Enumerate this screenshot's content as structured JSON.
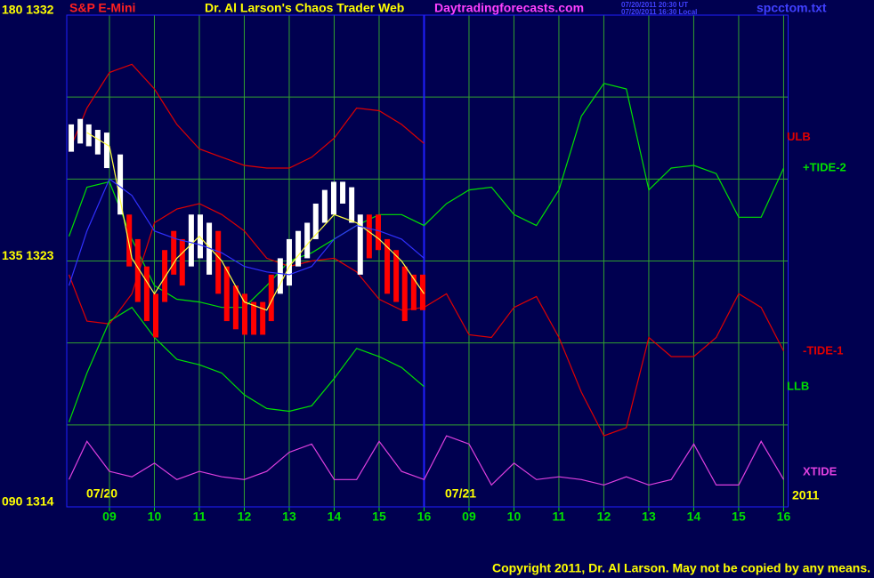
{
  "header": {
    "symbol": "S&P E-Mini",
    "title": "Dr. Al Larson's Chaos Trader Web",
    "site": "Daytradingforecasts.com",
    "timestamp_ut": "07/20/2011 20:30 UT",
    "timestamp_local": "07/20/2011 16:30 Local",
    "file": "spcctom.txt"
  },
  "chart_data": {
    "type": "line",
    "x": [
      0.1,
      0.5,
      1,
      1.5,
      2,
      2.5,
      3,
      3.5,
      4,
      4.5,
      5,
      5.5,
      6,
      6.5,
      7,
      7.5,
      8,
      8.5,
      9,
      9.5,
      10,
      10.5,
      11,
      11.5,
      12,
      12.5,
      13,
      13.5,
      14,
      14.5,
      15,
      15.5,
      16
    ],
    "xlim": [
      0.05,
      16.1
    ],
    "xticks": [
      {
        "value": 1,
        "label": "09"
      },
      {
        "value": 2,
        "label": "10"
      },
      {
        "value": 3,
        "label": "11"
      },
      {
        "value": 4,
        "label": "12"
      },
      {
        "value": 5,
        "label": "13"
      },
      {
        "value": 6,
        "label": "14"
      },
      {
        "value": 7,
        "label": "15"
      },
      {
        "value": 8,
        "label": "16"
      },
      {
        "value": 9,
        "label": "09"
      },
      {
        "value": 10,
        "label": "10"
      },
      {
        "value": 11,
        "label": "11"
      },
      {
        "value": 12,
        "label": "12"
      },
      {
        "value": 13,
        "label": "13"
      },
      {
        "value": 14,
        "label": "14"
      },
      {
        "value": 15,
        "label": "15"
      },
      {
        "value": 16,
        "label": "16"
      }
    ],
    "ylim": [
      1314,
      1332
    ],
    "yticks": [
      {
        "value": 1314,
        "label": "090 1314"
      },
      {
        "value": 1323,
        "label": "135 1323"
      },
      {
        "value": 1332,
        "label": "180 1332"
      }
    ],
    "minor_yticks": [
      1317,
      1320,
      1326,
      1329
    ],
    "grid": true,
    "divider_x": 8,
    "annotations": [
      "07/20",
      "07/21",
      "2011"
    ],
    "series": [
      {
        "name": "ULB",
        "color": "#e00000",
        "values": [
          1327.0,
          1328.6,
          1329.9,
          1330.2,
          1329.3,
          1328.0,
          1327.1,
          1326.8,
          1326.5,
          1326.4,
          1326.4,
          1326.8,
          1327.5,
          1328.6,
          1328.5,
          1328.0,
          1327.3,
          null,
          null,
          null,
          null,
          null,
          null,
          null,
          null,
          null,
          null,
          null,
          null,
          null,
          null,
          null,
          null
        ]
      },
      {
        "name": "+TIDE-2",
        "color": "#00e000",
        "values": [
          1323.9,
          1325.7,
          1325.9,
          1323.8,
          1322.1,
          1321.6,
          1321.5,
          1321.3,
          1321.3,
          1322.1,
          1323.0,
          1323.3,
          1323.8,
          1324.3,
          1324.7,
          1324.7,
          1324.3,
          1325.1,
          1325.6,
          1325.7,
          1324.7,
          1324.3,
          1325.6,
          1328.3,
          1329.5,
          1329.3,
          1325.6,
          1326.4,
          1326.5,
          1326.2,
          1324.6,
          1324.6,
          1326.4
        ]
      },
      {
        "name": "-TIDE-1",
        "color": "#e00000",
        "values": [
          1322.5,
          1320.8,
          1320.7,
          1321.8,
          1324.4,
          1324.9,
          1325.1,
          1324.7,
          1324.1,
          1323.1,
          1322.8,
          1323.0,
          1323.1,
          1322.6,
          1321.6,
          1321.2,
          1321.3,
          1321.8,
          1320.3,
          1320.2,
          1321.3,
          1321.7,
          1320.2,
          1318.2,
          1316.6,
          1316.9,
          1320.2,
          1319.5,
          1319.5,
          1320.2,
          1321.8,
          1321.3,
          1319.7
        ]
      },
      {
        "name": "LLB",
        "color": "#00e000",
        "values": [
          1317.1,
          1318.9,
          1320.8,
          1321.3,
          1320.2,
          1319.4,
          1319.2,
          1318.9,
          1318.1,
          1317.6,
          1317.5,
          1317.7,
          1318.7,
          1319.8,
          1319.5,
          1319.1,
          1318.4,
          null,
          null,
          null,
          null,
          null,
          null,
          null,
          null,
          null,
          null,
          null,
          null,
          null,
          null,
          null,
          null
        ]
      },
      {
        "name": "XTIDE",
        "color": "#e040e0",
        "values": [
          1315.0,
          1316.4,
          1315.3,
          1315.1,
          1315.6,
          1315.0,
          1315.3,
          1315.1,
          1315.0,
          1315.3,
          1316.0,
          1316.3,
          1315.0,
          1315.0,
          1316.4,
          1315.3,
          1315.0,
          1316.6,
          1316.3,
          1314.8,
          1315.6,
          1315.0,
          1315.1,
          1315.0,
          1314.8,
          1315.1,
          1314.8,
          1315.0,
          1316.3,
          1314.8,
          1314.8,
          1316.4,
          1315.0
        ]
      }
    ],
    "overlays": [
      {
        "color": "#ffff40",
        "values": [
          null,
          1327.7,
          1327.2,
          1323.1,
          1321.8,
          1323.1,
          1323.9,
          1323.0,
          1321.5,
          1321.2,
          1322.8,
          1323.8,
          1324.7,
          1324.4,
          1323.8,
          1323.0,
          1321.8,
          null,
          null,
          null,
          null,
          null,
          null,
          null,
          null,
          null,
          null,
          null,
          null,
          null,
          null,
          null,
          null
        ]
      },
      {
        "color": "#3030ff",
        "values": [
          1322.1,
          1324.1,
          1326.0,
          1325.4,
          1324.1,
          1323.8,
          1323.6,
          1323.3,
          1322.8,
          1322.6,
          1322.5,
          1322.8,
          1323.8,
          1324.3,
          1324.1,
          1323.8,
          1323.1,
          null,
          null,
          null,
          null,
          null,
          null,
          null,
          null,
          null,
          null,
          null,
          null,
          null,
          null,
          null,
          null
        ]
      }
    ],
    "price_bars": {
      "x": [
        0.15,
        0.35,
        0.54,
        0.74,
        0.94,
        1.24,
        1.44,
        1.63,
        1.83,
        2.03,
        2.23,
        2.43,
        2.62,
        2.82,
        3.02,
        3.22,
        3.42,
        3.61,
        3.81,
        4.01,
        4.21,
        4.41,
        4.6,
        4.8,
        5.0,
        5.2,
        5.4,
        5.59,
        5.79,
        5.99,
        6.19,
        6.39,
        6.58,
        6.78,
        6.98,
        7.18,
        7.38,
        7.57,
        7.77,
        7.97
      ],
      "high": [
        1328.0,
        1328.2,
        1328.0,
        1327.8,
        1327.7,
        1326.9,
        1324.7,
        1323.8,
        1322.8,
        1321.8,
        1323.4,
        1324.1,
        1323.8,
        1324.7,
        1324.7,
        1324.4,
        1324.1,
        1322.8,
        1322.1,
        1321.8,
        1321.5,
        1321.5,
        1322.5,
        1323.1,
        1323.8,
        1324.1,
        1324.4,
        1325.1,
        1325.6,
        1325.9,
        1325.9,
        1325.7,
        1324.7,
        1324.7,
        1324.7,
        1323.8,
        1323.4,
        1322.8,
        1322.5,
        1322.5
      ],
      "low": [
        1327.0,
        1327.3,
        1327.2,
        1326.9,
        1326.4,
        1324.7,
        1322.8,
        1321.5,
        1320.8,
        1320.2,
        1321.5,
        1322.5,
        1322.1,
        1322.8,
        1323.1,
        1322.5,
        1321.8,
        1320.8,
        1320.5,
        1320.3,
        1320.3,
        1320.3,
        1320.8,
        1321.8,
        1322.1,
        1322.8,
        1323.1,
        1323.8,
        1324.4,
        1324.7,
        1325.1,
        1324.4,
        1322.5,
        1323.1,
        1323.4,
        1321.8,
        1321.5,
        1320.8,
        1321.2,
        1321.2
      ],
      "colors": [
        "#ffffff",
        "#ffffff",
        "#ffffff",
        "#ffffff",
        "#ffffff",
        "#ffffff",
        "#ff0000",
        "#ff0000",
        "#ff0000",
        "#ff0000",
        "#ff0000",
        "#ff0000",
        "#ff0000",
        "#ffffff",
        "#ffffff",
        "#ffffff",
        "#ff0000",
        "#ff0000",
        "#ff0000",
        "#ff0000",
        "#ff0000",
        "#ff0000",
        "#ff0000",
        "#ffffff",
        "#ffffff",
        "#ffffff",
        "#ffffff",
        "#ffffff",
        "#ffffff",
        "#ffffff",
        "#ffffff",
        "#ffffff",
        "#ffffff",
        "#ff0000",
        "#ff0000",
        "#ff0000",
        "#ff0000",
        "#ff0000",
        "#ff0000",
        "#ff0000"
      ]
    }
  },
  "footer": "Copyright 2011, Dr. Al Larson. May not be copied by any means."
}
